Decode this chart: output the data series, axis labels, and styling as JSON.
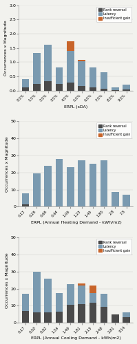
{
  "chart1": {
    "title": "ERPL (sDA)",
    "ylabel": "Occurrences x Magnitude",
    "ylim": [
      0,
      3
    ],
    "yticks": [
      0,
      0.5,
      1,
      1.5,
      2,
      2.5,
      3
    ],
    "categories": [
      "0.5%",
      "1.5%",
      "2.5%",
      "3.5%",
      "4.5%",
      "5.5%",
      "6.5%",
      "7.5%",
      "8.5%",
      "9.5%"
    ],
    "rank_reversal": [
      0.1,
      0.22,
      0.32,
      0.22,
      0.28,
      0.16,
      0.12,
      0.05,
      0.02,
      0.04
    ],
    "latency": [
      0.3,
      1.1,
      1.28,
      0.6,
      1.12,
      0.86,
      0.68,
      0.58,
      0.08,
      0.16
    ],
    "insuff_gain": [
      0.0,
      0.0,
      0.0,
      0.0,
      0.34,
      0.05,
      0.0,
      0.0,
      0.0,
      0.0
    ]
  },
  "chart2": {
    "title": "ERPL (Annual Heating Demand - kWh/m2)",
    "ylabel": "Occurrences x Magnitude",
    "ylim": [
      0,
      50
    ],
    "yticks": [
      0,
      10,
      20,
      30,
      40,
      50
    ],
    "categories": [
      "0.12",
      "0.26",
      "0.66",
      "0.44",
      "1.06",
      "1.23",
      "1.45",
      "1.80",
      "2.8",
      "7.5"
    ],
    "rank_reversal": [
      1.5,
      0.0,
      0.0,
      0.0,
      0.0,
      0.0,
      0.0,
      0.0,
      0.0,
      0.0
    ],
    "latency": [
      6.5,
      19.5,
      24.0,
      28.0,
      23.0,
      27.0,
      25.0,
      27.0,
      8.5,
      7.0
    ],
    "insuff_gain": [
      0.0,
      0.0,
      0.0,
      0.0,
      0.0,
      0.0,
      0.0,
      0.0,
      0.0,
      0.0
    ]
  },
  "chart3": {
    "title": "ERPL (Annual Cooling Demand - kWh/m2)",
    "ylabel": "Occurrences x Magnitude",
    "ylim": [
      0,
      50
    ],
    "yticks": [
      0,
      10,
      20,
      30,
      40,
      50
    ],
    "categories": [
      "0.17",
      "0.50",
      "0.82",
      "1.54",
      "1.49",
      "1.81",
      "2.15",
      "2.48",
      "2.81",
      "3.14"
    ],
    "rank_reversal": [
      7.0,
      6.0,
      6.0,
      6.5,
      10.5,
      11.0,
      12.0,
      9.5,
      5.0,
      3.5
    ],
    "latency": [
      10.0,
      24.0,
      20.0,
      11.0,
      12.0,
      11.0,
      5.5,
      7.5,
      0.0,
      2.5
    ],
    "insuff_gain": [
      0.0,
      0.0,
      0.0,
      0.0,
      0.0,
      1.0,
      4.5,
      0.0,
      0.0,
      0.0
    ]
  },
  "colors": {
    "rank_reversal": "#4a4a4a",
    "latency": "#7a9ab0",
    "insuff_gain": "#c8642a"
  },
  "legend_labels": [
    "Rank reversal",
    "Latency",
    "Insufficient gain"
  ],
  "bg_color": "#f2f2ee"
}
